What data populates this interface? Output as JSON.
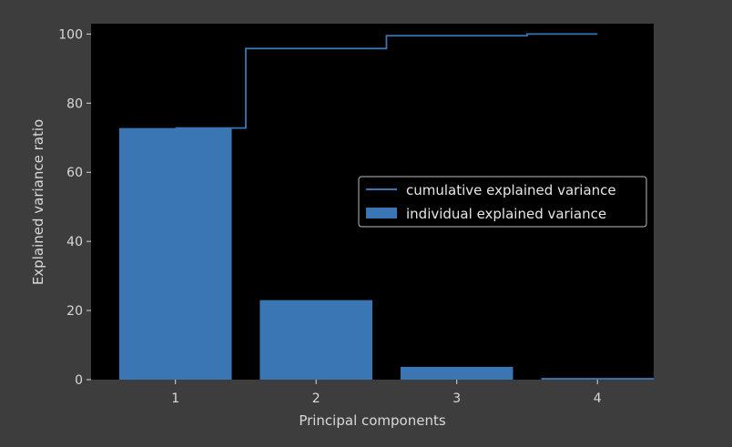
{
  "chart_data": {
    "type": "bar",
    "categories": [
      "1",
      "2",
      "3",
      "4"
    ],
    "x": [
      1,
      2,
      3,
      4
    ],
    "series": [
      {
        "name": "individual explained variance",
        "kind": "bar",
        "values": [
          72.8,
          23.0,
          3.7,
          0.5
        ]
      },
      {
        "name": "cumulative explained variance",
        "kind": "step",
        "values": [
          72.8,
          95.8,
          99.5,
          100.0
        ]
      }
    ],
    "xlabel": "Principal components",
    "ylabel": "Explained variance ratio",
    "ylim": [
      0,
      103
    ],
    "xlim": [
      0.4,
      4.4
    ],
    "yticks": [
      0,
      20,
      40,
      60,
      80,
      100
    ],
    "xticks": [
      1,
      2,
      3,
      4
    ],
    "grid": false,
    "legend_position": "center-right",
    "colors": {
      "bar": "#3a75b4",
      "line": "#3a75b4",
      "plot_background": "#000000",
      "figure_background": "#3d3d3d",
      "text": "#d9d9d9"
    }
  }
}
